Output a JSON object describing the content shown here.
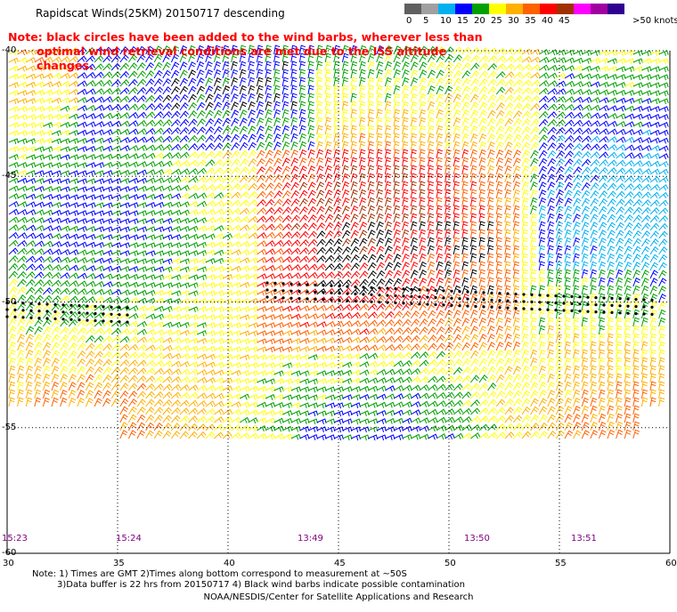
{
  "title": "Rapidscat Winds(25KM) 20150717 descending",
  "note": {
    "line1": "Note: black circles have been added to the wind barbs, wherever less than",
    "line2": "optimal wind retrieval conditions are met due to the ISS altitude changes."
  },
  "legend": {
    "units": ">50 knots",
    "labels": [
      "0",
      "5",
      "10",
      "15",
      "20",
      "25",
      "30",
      "35",
      "40",
      "45"
    ],
    "colors": [
      "#606060",
      "#a0a0a0",
      "#00b0f0",
      "#0000ff",
      "#00a000",
      "#ffff00",
      "#ffb000",
      "#ff6000",
      "#ff0000",
      "#a03000",
      "#ff00ff",
      "#a000a0",
      "#300090"
    ]
  },
  "map": {
    "lat_labels": [
      "-40",
      "-45",
      "-50",
      "-55",
      "-60"
    ],
    "lon_labels": [
      "30",
      "35",
      "40",
      "45",
      "50",
      "55",
      "60"
    ],
    "time_labels": [
      "15:23",
      "15:24",
      "13:49",
      "13:50",
      "13:51"
    ],
    "lon_range": [
      30,
      60
    ],
    "lat_range": [
      -40,
      -60
    ]
  },
  "footnote": {
    "line1": "Note: 1) Times are GMT 2)Times along bottom correspond to measurement at ~50S",
    "line2": "3)Data buffer is 22 hrs from 20150717 4) Black wind barbs indicate possible contamination"
  },
  "credit": "NOAA/NESDIS/Center for Satellite Applications and Research"
}
